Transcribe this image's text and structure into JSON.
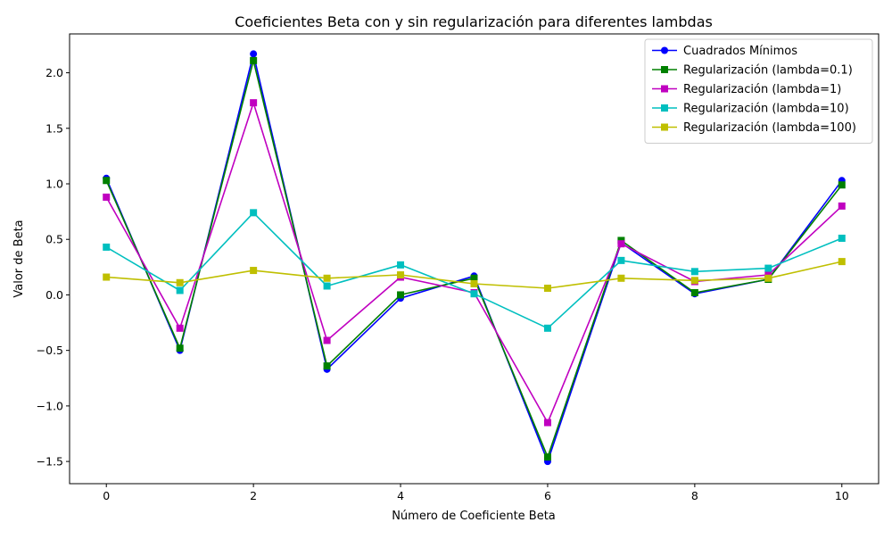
{
  "chart_data": {
    "type": "line",
    "title": "Coeficientes Beta con y sin regularización para diferentes lambdas",
    "xlabel": "Número de Coeficiente Beta",
    "ylabel": "Valor de Beta",
    "xlim": [
      -0.5,
      10.5
    ],
    "ylim": [
      -1.7,
      2.35
    ],
    "xticks": [
      0,
      2,
      4,
      6,
      8,
      10
    ],
    "yticks": [
      -1.5,
      -1.0,
      -0.5,
      0.0,
      0.5,
      1.0,
      1.5,
      2.0
    ],
    "ytick_labels": [
      "−1.5",
      "−1.0",
      "−0.5",
      "0.0",
      "0.5",
      "1.0",
      "1.5",
      "2.0"
    ],
    "grid": false,
    "legend_position": "top-right",
    "x": [
      0,
      1,
      2,
      3,
      4,
      5,
      6,
      7,
      8,
      9,
      10
    ],
    "series": [
      {
        "name": "Cuadrados Mínimos",
        "color": "#0000ff",
        "marker": "circle",
        "values": [
          1.05,
          -0.5,
          2.17,
          -0.67,
          -0.03,
          0.17,
          -1.5,
          0.47,
          0.01,
          0.14,
          1.03
        ]
      },
      {
        "name": "Regularización (lambda=0.1)",
        "color": "#008000",
        "marker": "square",
        "values": [
          1.03,
          -0.48,
          2.11,
          -0.64,
          0.0,
          0.15,
          -1.46,
          0.49,
          0.02,
          0.14,
          0.99
        ]
      },
      {
        "name": "Regularización (lambda=1)",
        "color": "#c000c0",
        "marker": "square",
        "values": [
          0.88,
          -0.3,
          1.73,
          -0.41,
          0.16,
          0.02,
          -1.15,
          0.46,
          0.12,
          0.18,
          0.8
        ]
      },
      {
        "name": "Regularización (lambda=10)",
        "color": "#00bfbf",
        "marker": "square",
        "values": [
          0.43,
          0.04,
          0.74,
          0.08,
          0.27,
          0.01,
          -0.3,
          0.31,
          0.21,
          0.24,
          0.51
        ]
      },
      {
        "name": "Regularización (lambda=100)",
        "color": "#bfbf00",
        "marker": "square",
        "values": [
          0.16,
          0.11,
          0.22,
          0.15,
          0.18,
          0.1,
          0.06,
          0.15,
          0.13,
          0.15,
          0.3
        ]
      }
    ]
  }
}
